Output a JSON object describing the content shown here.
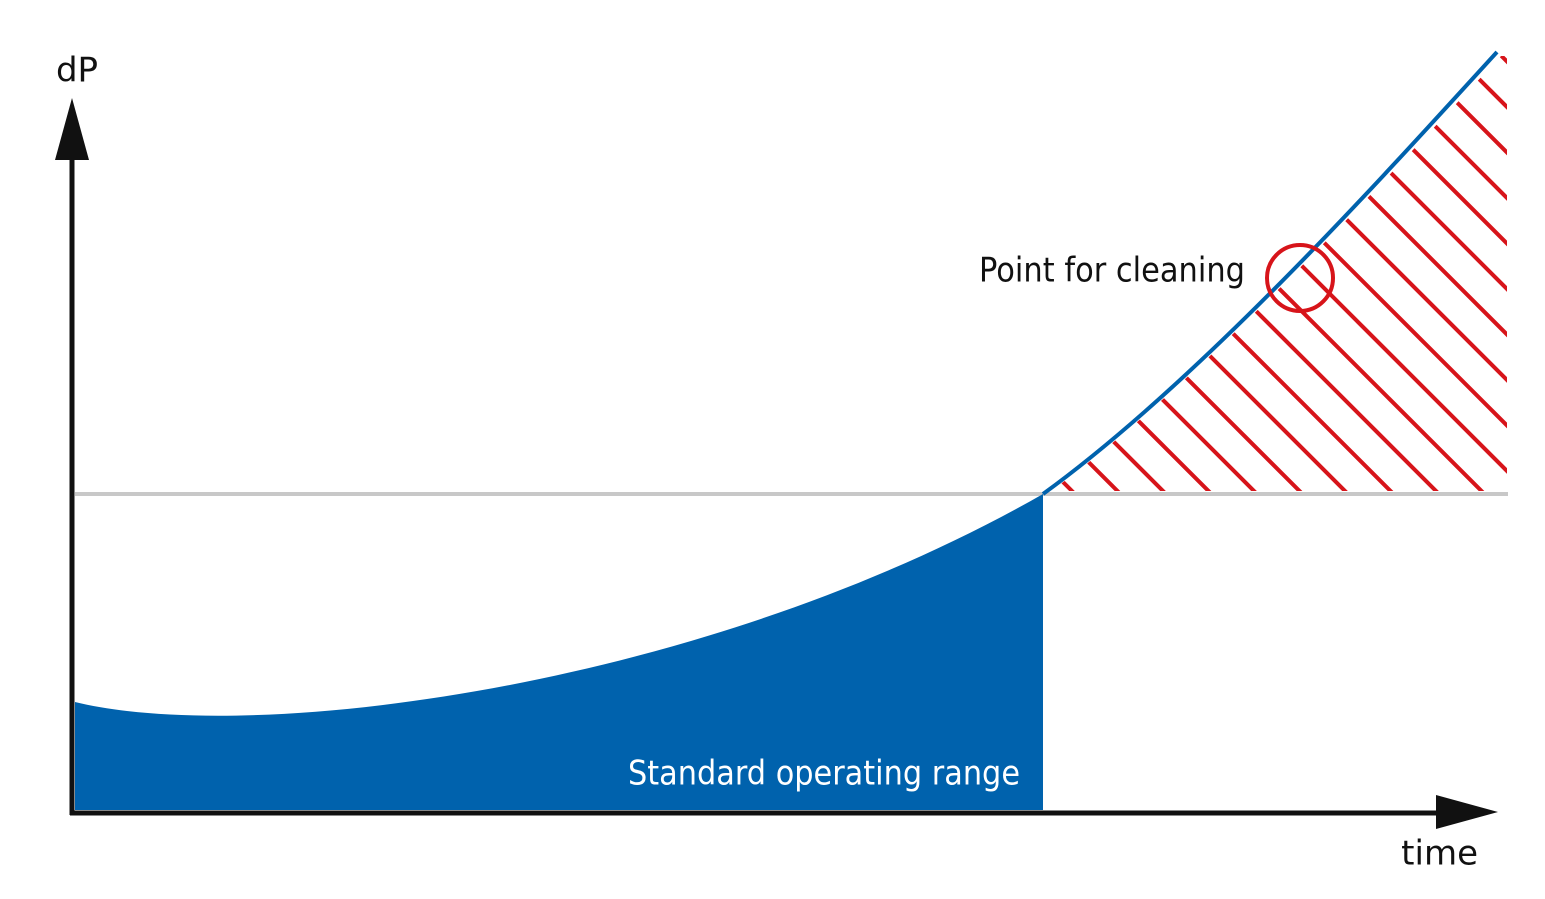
{
  "y_axis_label": "dP",
  "x_axis_label": "time",
  "annotations": {
    "cleaning_point": "Point for cleaning",
    "operating_range": "Standard operating range"
  }
}
